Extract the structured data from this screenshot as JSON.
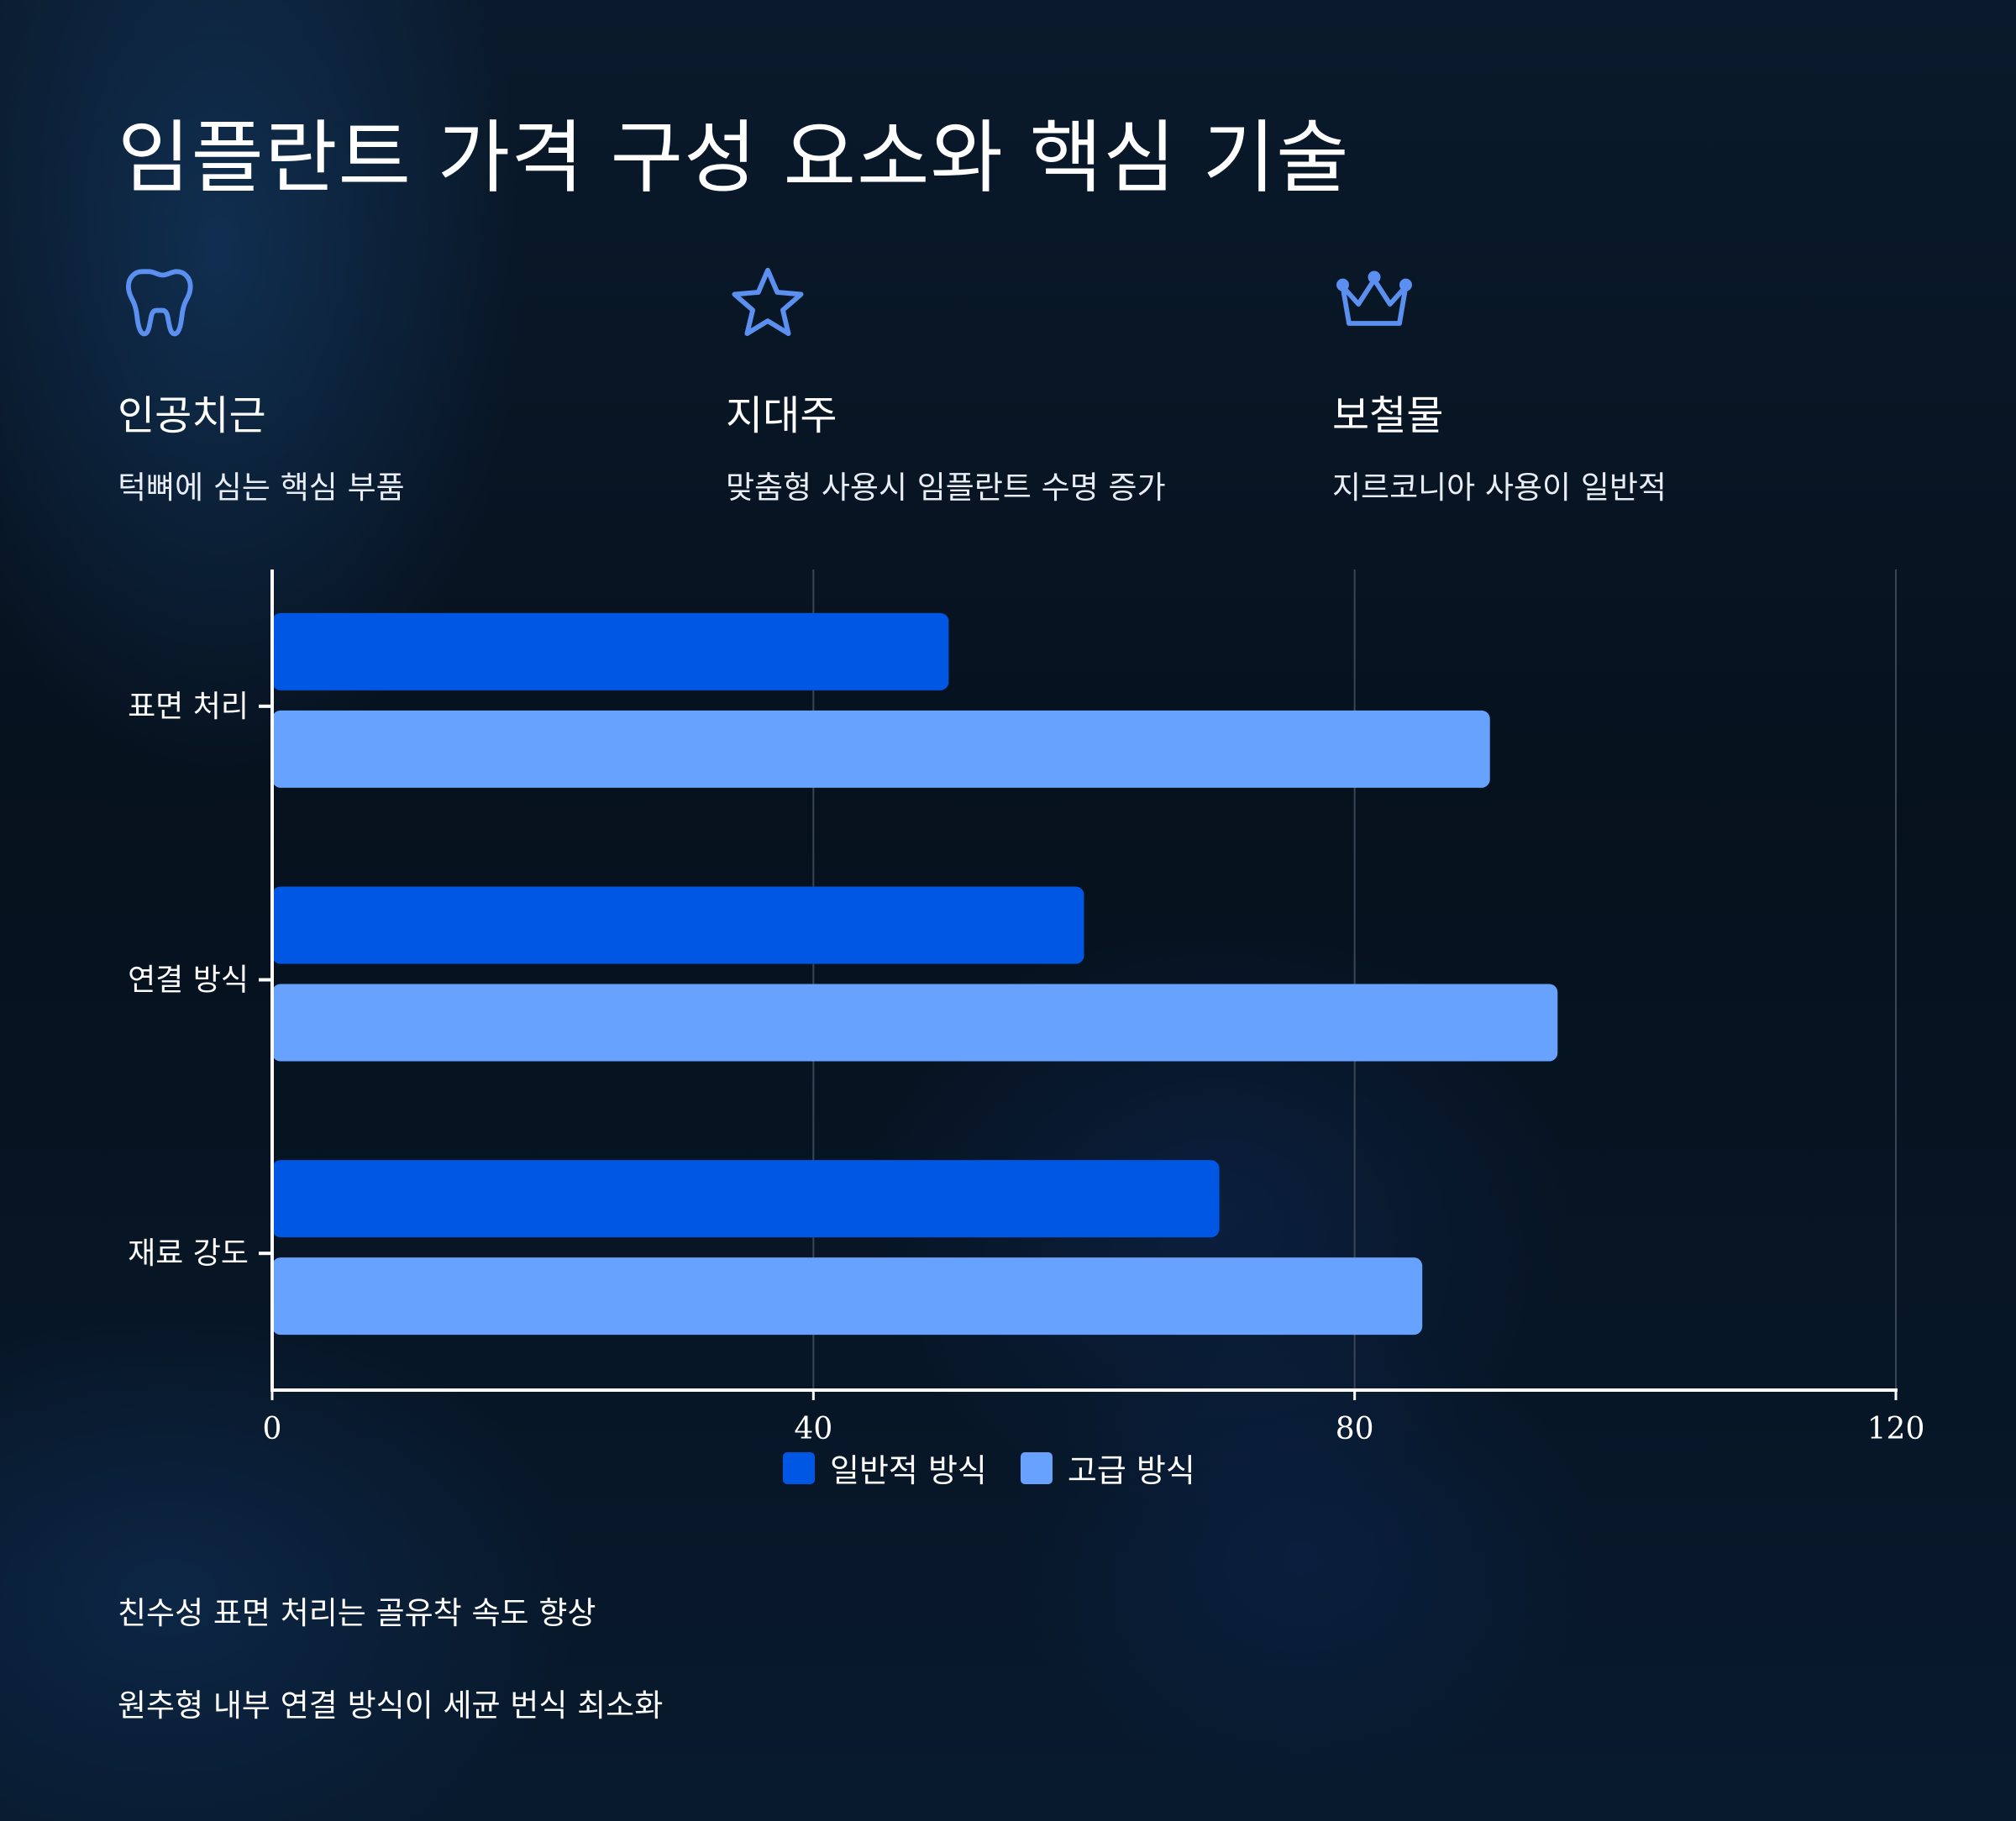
{
  "title": "임플란트 가격 구성 요소와 핵심 기술",
  "features": [
    {
      "icon": "tooth-icon",
      "title": "인공치근",
      "desc": "턱뼈에 심는 핵심 부품"
    },
    {
      "icon": "star-icon",
      "title": "지대주",
      "desc": "맞춤형 사용시 임플란트 수명 증가"
    },
    {
      "icon": "crown-icon",
      "title": "보철물",
      "desc": "지르코니아 사용이 일반적"
    }
  ],
  "colors": {
    "accent_icon": "#5b8ff0",
    "series_standard": "#0057e3",
    "series_premium": "#67a2ff",
    "grid": "#3a4656",
    "axis": "#ffffff"
  },
  "chart_data": {
    "type": "bar",
    "orientation": "horizontal",
    "categories": [
      "표면 처리",
      "연결 방식",
      "재료 강도"
    ],
    "series": [
      {
        "name": "일반적 방식",
        "values": [
          50,
          60,
          70
        ]
      },
      {
        "name": "고급 방식",
        "values": [
          90,
          95,
          85
        ]
      }
    ],
    "xlim": [
      0,
      120
    ],
    "xticks": [
      "0",
      "40",
      "80",
      "120"
    ],
    "grid": true,
    "legend_position": "bottom-center"
  },
  "notes": [
    "친수성 표면 처리는 골유착 속도 향상",
    "원추형 내부 연결 방식이 세균 번식 최소화"
  ]
}
